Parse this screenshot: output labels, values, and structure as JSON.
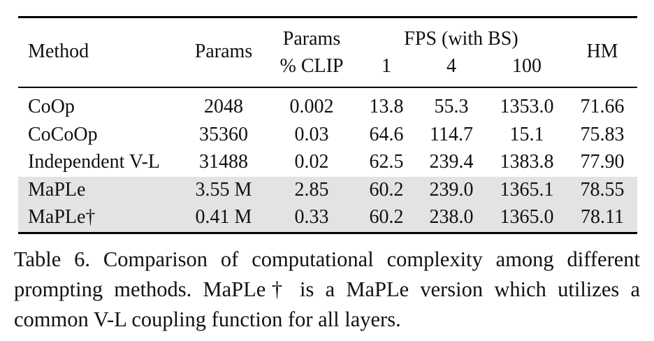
{
  "table": {
    "headers": {
      "method": "Method",
      "params": "Params",
      "params_clip_line1": "Params",
      "params_clip_line2": "% CLIP",
      "fps_group": "FPS (with BS)",
      "fps_bs": [
        "1",
        "4",
        "100"
      ],
      "hm": "HM"
    },
    "rows": [
      {
        "method": "CoOp",
        "params": "2048",
        "params_clip": "0.002",
        "fps_1": "13.8",
        "fps_4": "55.3",
        "fps_100": "1353.0",
        "hm": "71.66",
        "highlight": false
      },
      {
        "method": "CoCoOp",
        "params": "35360",
        "params_clip": "0.03",
        "fps_1": "64.6",
        "fps_4": "114.7",
        "fps_100": "15.1",
        "hm": "75.83",
        "highlight": false
      },
      {
        "method": "Independent V-L",
        "params": "31488",
        "params_clip": "0.02",
        "fps_1": "62.5",
        "fps_4": "239.4",
        "fps_100": "1383.8",
        "hm": "77.90",
        "highlight": false
      },
      {
        "method": "MaPLe",
        "params": "3.55 M",
        "params_clip": "2.85",
        "fps_1": "60.2",
        "fps_4": "239.0",
        "fps_100": "1365.1",
        "hm": "78.55",
        "highlight": true
      },
      {
        "method": "MaPLe†",
        "params": "0.41 M",
        "params_clip": "0.33",
        "fps_1": "60.2",
        "fps_4": "238.0",
        "fps_100": "1365.0",
        "hm": "78.11",
        "highlight": true
      }
    ],
    "highlight_color": "#e3e3e3"
  },
  "caption": "Table 6. Comparison of computational complexity among different prompting methods. MaPLe† is a MaPLe version which utilizes a common V-L coupling function for all layers."
}
